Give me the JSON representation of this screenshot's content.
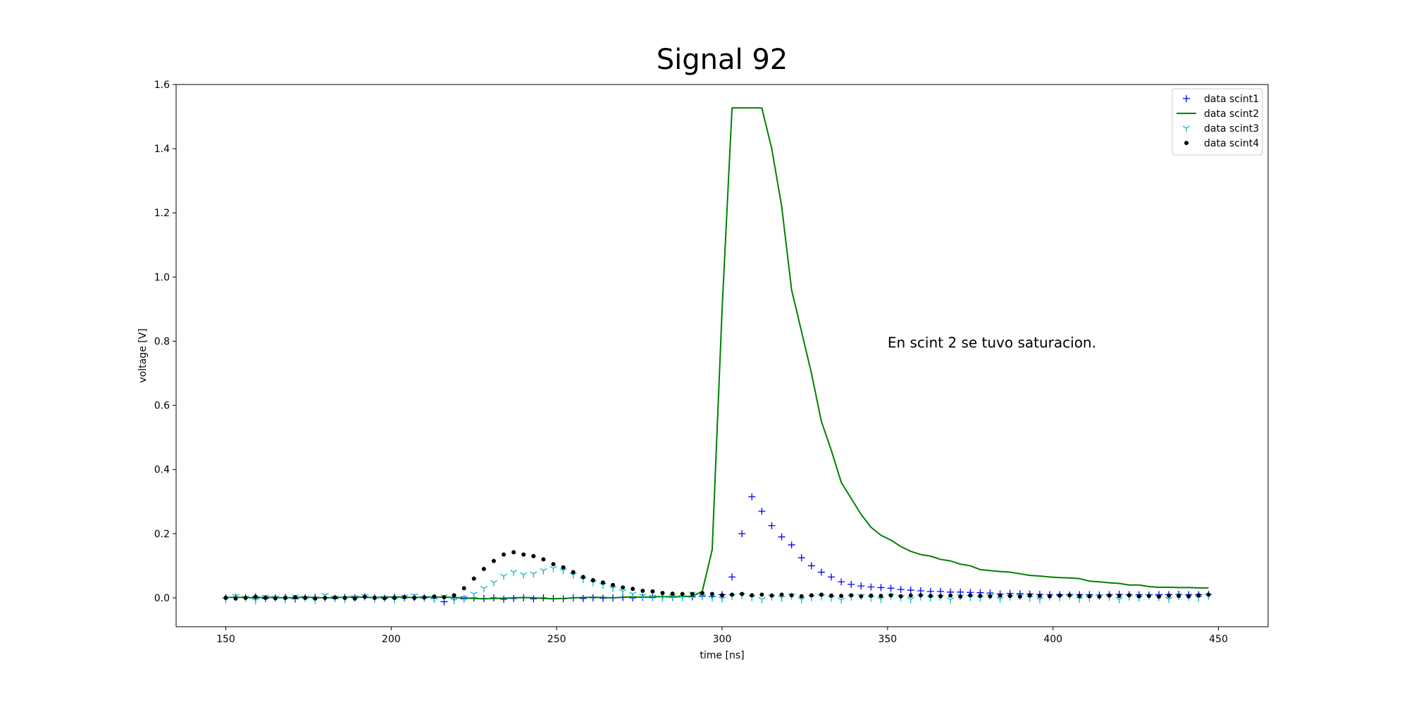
{
  "chart_data": {
    "type": "scatter",
    "title": "Signal 92",
    "x_label": "time [ns]",
    "y_label": "voltage [V]",
    "annotation": {
      "text": "En scint 2 se tuvo saturacion.",
      "x": 350,
      "y": 0.78
    },
    "legend": "upper right",
    "grid": false,
    "xlim": [
      135,
      465
    ],
    "ylim": [
      -0.09,
      1.6
    ],
    "xticks": [
      150,
      200,
      250,
      300,
      350,
      400,
      450
    ],
    "yticks": [
      {
        "value": 0,
        "label": "0.0"
      },
      0.2,
      0.4,
      0.6,
      0.8,
      {
        "value": 1,
        "label": "1.0"
      },
      1.2,
      1.4,
      1.6
    ],
    "x": [
      150,
      153,
      156,
      159,
      162,
      165,
      168,
      171,
      174,
      177,
      180,
      183,
      186,
      189,
      192,
      195,
      198,
      201,
      204,
      207,
      210,
      213,
      216,
      219,
      222,
      225,
      228,
      231,
      234,
      237,
      240,
      243,
      246,
      249,
      252,
      255,
      258,
      261,
      264,
      267,
      270,
      273,
      276,
      279,
      282,
      285,
      288,
      291,
      294,
      297,
      300,
      303,
      306,
      309,
      312,
      315,
      318,
      321,
      324,
      327,
      330,
      333,
      336,
      339,
      342,
      345,
      348,
      351,
      354,
      357,
      360,
      363,
      366,
      369,
      372,
      375,
      378,
      381,
      384,
      387,
      390,
      393,
      396,
      399,
      402,
      405,
      408,
      411,
      414,
      417,
      420,
      423,
      426,
      429,
      432,
      435,
      438,
      441,
      444,
      447
    ],
    "series": [
      {
        "name": "data scint1",
        "color": "#0000ff",
        "marker": "plus",
        "values": [
          0.0,
          0.002,
          0.0,
          0.003,
          -0.002,
          0.0,
          0.001,
          -0.003,
          0.0,
          0.002,
          0.0,
          -0.002,
          0.001,
          0.0,
          0.003,
          0.0,
          -0.001,
          0.002,
          0.0,
          0.001,
          0.0,
          -0.002,
          -0.012,
          0.0,
          -0.003,
          0.0,
          -0.002,
          0.0,
          -0.004,
          -0.002,
          0.0,
          -0.003,
          0.0,
          -0.002,
          -0.003,
          0.0,
          -0.002,
          0.0,
          -0.001,
          0.0,
          0.001,
          0.0,
          0.002,
          0.001,
          0.003,
          0.002,
          0.004,
          0.003,
          0.005,
          0.004,
          0.01,
          0.065,
          0.2,
          0.315,
          0.27,
          0.225,
          0.19,
          0.165,
          0.125,
          0.1,
          0.08,
          0.065,
          0.05,
          0.042,
          0.037,
          0.034,
          0.032,
          0.03,
          0.026,
          0.024,
          0.022,
          0.02,
          0.02,
          0.018,
          0.018,
          0.017,
          0.016,
          0.015,
          0.012,
          0.014,
          0.013,
          0.012,
          0.011,
          0.01,
          0.01,
          0.009,
          0.01,
          0.01,
          0.009,
          0.01,
          0.011,
          0.01,
          0.01,
          0.009,
          0.01,
          0.01,
          0.011,
          0.01,
          0.01,
          0.011
        ]
      },
      {
        "name": "data scint2",
        "color": "#008000",
        "marker": "line",
        "values": [
          0.001,
          0.002,
          0.001,
          0.0,
          0.002,
          0.001,
          0.0,
          0.001,
          0.002,
          0.001,
          0.0,
          0.001,
          0.002,
          0.003,
          0.002,
          0.001,
          0.002,
          0.003,
          0.002,
          0.001,
          0.002,
          0.003,
          0.002,
          0.001,
          0.0,
          -0.002,
          -0.003,
          -0.002,
          -0.001,
          0.0,
          0.001,
          0.0,
          -0.002,
          -0.003,
          -0.002,
          0.0,
          0.001,
          0.002,
          0.001,
          0.0,
          0.002,
          0.003,
          0.002,
          0.003,
          0.004,
          0.003,
          0.004,
          0.005,
          0.02,
          0.15,
          0.9,
          1.527,
          1.527,
          1.527,
          1.527,
          1.4,
          1.22,
          0.96,
          0.83,
          0.7,
          0.55,
          0.46,
          0.36,
          0.31,
          0.26,
          0.22,
          0.195,
          0.18,
          0.16,
          0.145,
          0.135,
          0.13,
          0.12,
          0.115,
          0.105,
          0.1,
          0.088,
          0.085,
          0.082,
          0.08,
          0.075,
          0.07,
          0.068,
          0.065,
          0.063,
          0.062,
          0.06,
          0.052,
          0.05,
          0.047,
          0.045,
          0.04,
          0.04,
          0.035,
          0.033,
          0.033,
          0.032,
          0.032,
          0.031,
          0.031
        ]
      },
      {
        "name": "data scint3",
        "color": "#00bfbf",
        "marker": "tri_down",
        "values": [
          -0.005,
          0.005,
          0.0,
          -0.008,
          0.003,
          0.0,
          -0.006,
          0.004,
          0.0,
          -0.007,
          0.008,
          0.0,
          -0.004,
          0.002,
          0.005,
          -0.003,
          0.0,
          -0.006,
          0.003,
          0.007,
          0.0,
          -0.004,
          0.004,
          -0.008,
          0.0,
          0.012,
          0.03,
          0.048,
          0.068,
          0.08,
          0.072,
          0.075,
          0.085,
          0.092,
          0.085,
          0.072,
          0.058,
          0.048,
          0.04,
          0.03,
          0.02,
          0.012,
          0.006,
          0.003,
          0.0,
          0.005,
          0.002,
          0.012,
          0.005,
          0.0,
          -0.003,
          0.005,
          0.008,
          0.002,
          -0.004,
          0.003,
          0.0,
          0.006,
          -0.005,
          0.002,
          0.004,
          0.0,
          -0.006,
          0.003,
          0.005,
          0.0,
          -0.004,
          0.006,
          0.002,
          -0.005,
          0.004,
          0.0,
          0.003,
          -0.006,
          0.005,
          0.002,
          0.0,
          0.006,
          -0.004,
          0.003,
          0.005,
          0.0,
          -0.005,
          0.004,
          0.002,
          0.006,
          -0.003,
          0.0,
          0.005,
          0.003,
          -0.005,
          0.004,
          0.0,
          0.006,
          0.002,
          -0.004,
          0.005,
          0.003,
          0.0,
          0.006
        ]
      },
      {
        "name": "data scint4",
        "color": "#000000",
        "marker": "dot",
        "values": [
          0.0,
          -0.002,
          0.0,
          0.003,
          0.0,
          -0.001,
          0.0,
          0.002,
          0.0,
          -0.002,
          0.0,
          0.001,
          0.0,
          -0.002,
          0.003,
          0.0,
          -0.001,
          0.0,
          0.002,
          0.0,
          0.001,
          0.004,
          0.002,
          0.008,
          0.03,
          0.06,
          0.09,
          0.115,
          0.135,
          0.142,
          0.135,
          0.13,
          0.12,
          0.105,
          0.095,
          0.08,
          0.065,
          0.055,
          0.048,
          0.04,
          0.032,
          0.028,
          0.022,
          0.02,
          0.015,
          0.013,
          0.012,
          0.012,
          0.015,
          0.012,
          0.008,
          0.01,
          0.012,
          0.008,
          0.01,
          0.007,
          0.01,
          0.008,
          0.005,
          0.008,
          0.01,
          0.007,
          0.006,
          0.008,
          0.005,
          0.007,
          0.006,
          0.008,
          0.005,
          0.007,
          0.008,
          0.006,
          0.005,
          0.007,
          0.004,
          0.008,
          0.006,
          0.005,
          0.007,
          0.006,
          0.004,
          0.008,
          0.006,
          0.005,
          0.007,
          0.008,
          0.006,
          0.005,
          0.004,
          0.007,
          0.006,
          0.008,
          0.005,
          0.006,
          0.004,
          0.007,
          0.006,
          0.005,
          0.008,
          0.01
        ]
      }
    ]
  }
}
